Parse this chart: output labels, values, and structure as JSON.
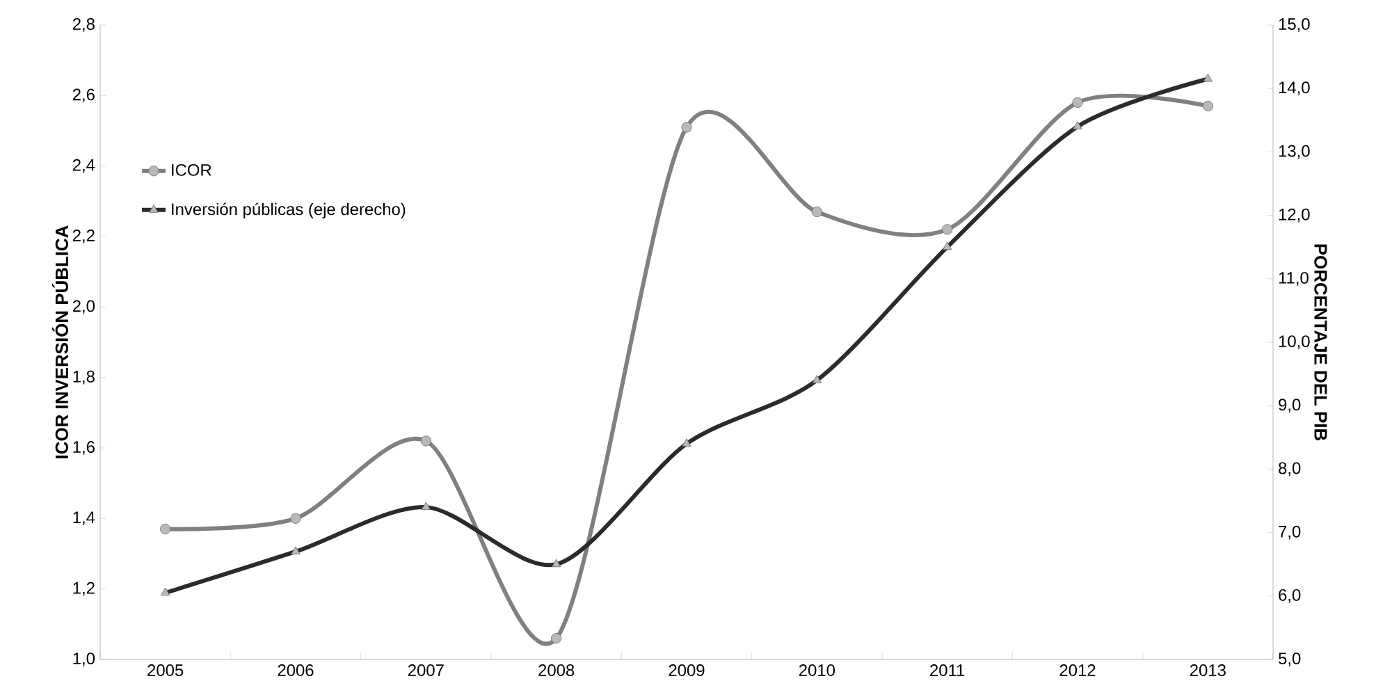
{
  "chart_data": {
    "type": "line",
    "ylabel": "ICOR INVERSIÓN PÚBLICA",
    "y2label": "PORCENTAJE DEL PIB",
    "categories": [
      "2005",
      "2006",
      "2007",
      "2008",
      "2009",
      "2010",
      "2011",
      "2012",
      "2013"
    ],
    "series": [
      {
        "name": "ICOR",
        "color": "#808080",
        "marker": "circle",
        "values": [
          1.37,
          1.4,
          1.62,
          1.06,
          2.51,
          2.27,
          2.22,
          2.58,
          2.57
        ]
      },
      {
        "name": "Inversión públicas (eje derecho)",
        "color": "#2b2b2b",
        "marker": "triangle",
        "axis": "y2",
        "values": [
          6.05,
          6.7,
          7.4,
          6.5,
          8.4,
          9.4,
          11.5,
          13.4,
          14.15
        ]
      }
    ],
    "ylim": [
      1.0,
      2.8
    ],
    "yticks": [
      {
        "value": 1.0,
        "label": "1,0"
      },
      {
        "value": 1.2,
        "label": "1,2"
      },
      {
        "value": 1.4,
        "label": "1,4"
      },
      {
        "value": 1.6,
        "label": "1,6"
      },
      {
        "value": 1.8,
        "label": "1,8"
      },
      {
        "value": 2.0,
        "label": "2,0"
      },
      {
        "value": 2.2,
        "label": "2,2"
      },
      {
        "value": 2.4,
        "label": "2,4"
      },
      {
        "value": 2.6,
        "label": "2,6"
      },
      {
        "value": 2.8,
        "label": "2,8"
      }
    ],
    "y2lim": [
      5.0,
      15.0
    ],
    "y2ticks": [
      {
        "value": 5.0,
        "label": "5,0"
      },
      {
        "value": 6.0,
        "label": "6,0"
      },
      {
        "value": 7.0,
        "label": "7,0"
      },
      {
        "value": 8.0,
        "label": "8,0"
      },
      {
        "value": 9.0,
        "label": "9,0"
      },
      {
        "value": 10.0,
        "label": "10,0"
      },
      {
        "value": 11.0,
        "label": "11,0"
      },
      {
        "value": 12.0,
        "label": "12,0"
      },
      {
        "value": 13.0,
        "label": "13,0"
      },
      {
        "value": 14.0,
        "label": "14,0"
      },
      {
        "value": 15.0,
        "label": "15,0"
      }
    ],
    "legend": "top left",
    "grid": false
  }
}
